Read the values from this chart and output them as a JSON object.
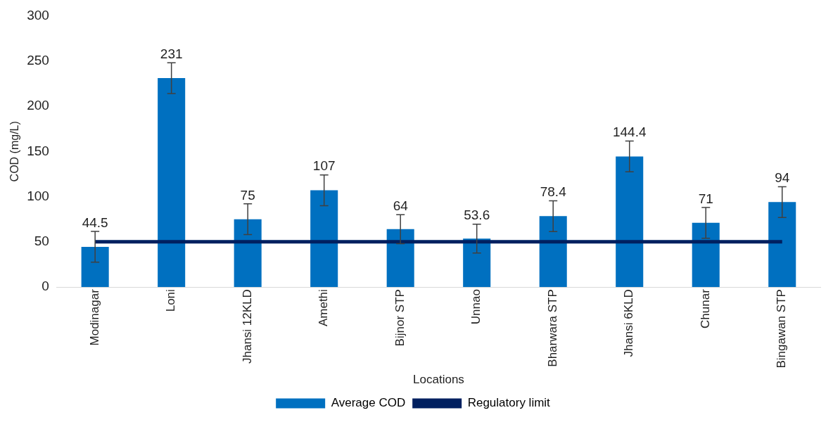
{
  "chart_data": {
    "type": "bar",
    "xlabel": "Locations",
    "ylabel": "COD (mg/L)",
    "categories": [
      "Modinagar",
      "Loni",
      "Jhansi 12KLD",
      "Amethi",
      "Bijnor STP",
      "Unnao",
      "Bharwara STP",
      "Jhansi 6KLD",
      "Chunar",
      "Bingawan STP"
    ],
    "series": [
      {
        "name": "Average COD",
        "color": "#0070c0",
        "values": [
          44.5,
          231,
          75,
          107,
          64,
          53.6,
          78.4,
          144.4,
          71,
          94
        ],
        "errors": [
          17,
          17,
          17,
          17,
          16,
          16,
          17,
          17,
          17,
          17
        ],
        "value_labels": [
          "44.5",
          "231",
          "75",
          "107",
          "64",
          "53.6",
          "78.4",
          "144.4",
          "71",
          "94"
        ]
      },
      {
        "name": "Regulatory limit",
        "type": "line",
        "color": "#002060",
        "values": [
          50,
          50,
          50,
          50,
          50,
          50,
          50,
          50,
          50,
          50
        ]
      }
    ],
    "ylim": [
      0,
      300
    ],
    "yticks": [
      0,
      50,
      100,
      150,
      200,
      250,
      300
    ],
    "grid": false,
    "legend": "bottom",
    "marker": "none",
    "line_style": "solid"
  }
}
